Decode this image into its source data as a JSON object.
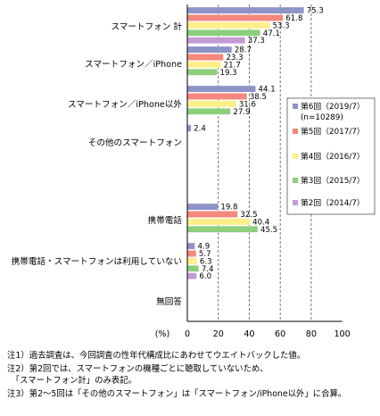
{
  "chart_data": {
    "type": "bar",
    "orientation": "horizontal",
    "categories": [
      "スマートフォン 計",
      "スマートフォン／iPhone",
      "スマートフォン／iPhone以外",
      "その他のスマートフォン",
      "携帯電話",
      "携帯電話・スマートフォンは利用していない",
      "無回答"
    ],
    "series": [
      {
        "name": "第6回（2019/7）",
        "color": "#8e93c8",
        "values": [
          75.3,
          28.7,
          44.1,
          2.4,
          19.8,
          4.9,
          null
        ]
      },
      {
        "name": "第5回（2017/7）",
        "color": "#f4887c",
        "values": [
          61.8,
          23.3,
          38.5,
          null,
          32.5,
          5.7,
          null
        ]
      },
      {
        "name": "第4回（2016/7）",
        "color": "#ffef8a",
        "values": [
          53.3,
          21.7,
          31.6,
          null,
          40.4,
          6.3,
          null
        ]
      },
      {
        "name": "第3回（2015/7）",
        "color": "#8ccf7c",
        "values": [
          47.1,
          19.3,
          27.9,
          null,
          45.5,
          7.4,
          null
        ]
      },
      {
        "name": "第2回（2014/7）",
        "color": "#c59ad6",
        "values": [
          37.3,
          null,
          null,
          null,
          null,
          6.0,
          null
        ]
      }
    ],
    "legend_note": "(n=10289)",
    "legend_position": "right",
    "xlim": [
      0,
      100
    ],
    "xticks": [
      "0",
      "20",
      "40",
      "60",
      "80",
      "100"
    ],
    "xunit": "(%)",
    "grid": "dashed-vertical"
  },
  "notes": [
    "注1）過去調査は、今回調査の性年代構成比にあわせてウエイトバックした値。",
    "注2）第2回では、スマートフォンの機種ごとに聴取していないため、",
    "　「スマートフォン計」のみ表記。",
    "注3）第2～5回は「その他のスマートフォン」は「スマートフォン/iPhone以外」に合算。"
  ]
}
